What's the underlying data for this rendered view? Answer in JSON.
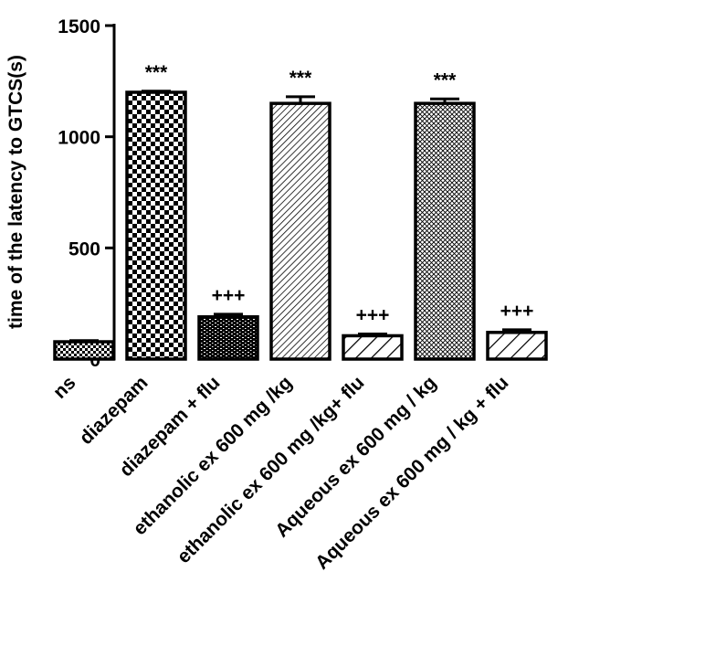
{
  "chart_data": {
    "type": "bar",
    "title": "",
    "xlabel": "",
    "ylabel": "time of the latency to GTCS(s)",
    "ylim": [
      0,
      1500
    ],
    "yticks": [
      0,
      500,
      1000,
      1500
    ],
    "grid": false,
    "categories": [
      "ns",
      "diazepam",
      "diazepam + flu",
      "ethanolic ex 600 mg /kg",
      "ethanolic ex 600 mg /kg+ flu",
      "Aqueous ex 600 mg / kg",
      "Aqueous ex 600 mg / kg + flu"
    ],
    "values": [
      78,
      1200,
      190,
      1150,
      105,
      1150,
      120
    ],
    "errors": [
      5,
      5,
      12,
      30,
      8,
      20,
      12
    ],
    "patterns": [
      "dense-check",
      "checker",
      "brick",
      "diag-lines",
      "wide-diag",
      "crosshatch",
      "wide-diag"
    ],
    "significance": [
      "",
      "***",
      "+++",
      "***",
      "+++",
      "***",
      "+++"
    ]
  }
}
